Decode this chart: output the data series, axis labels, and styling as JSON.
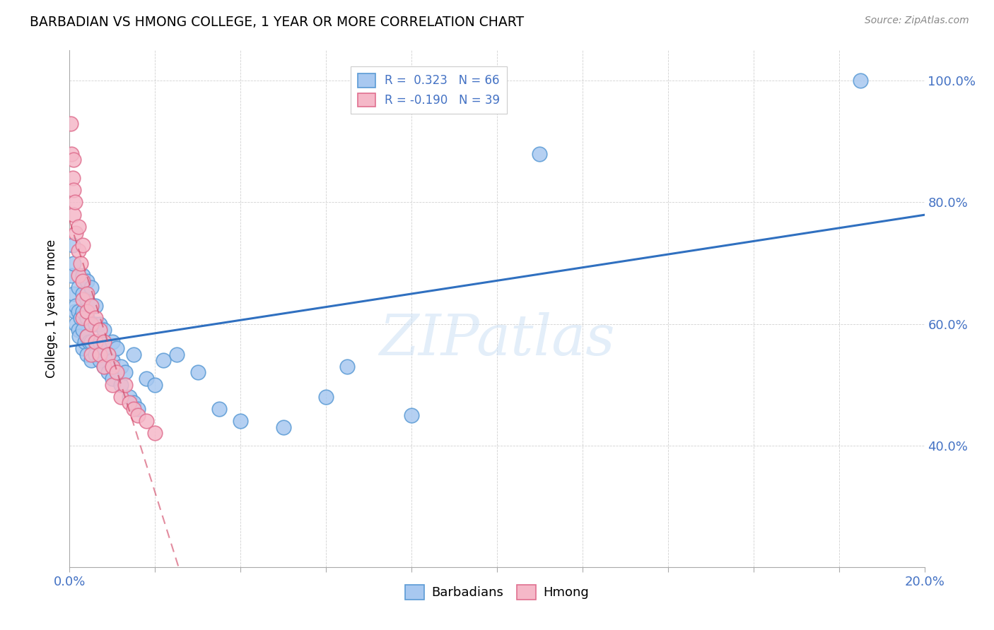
{
  "title": "BARBADIAN VS HMONG COLLEGE, 1 YEAR OR MORE CORRELATION CHART",
  "source_text": "Source: ZipAtlas.com",
  "ylabel": "College, 1 year or more",
  "xlim": [
    0.0,
    0.2
  ],
  "ylim": [
    0.2,
    1.05
  ],
  "barbadian_color": "#a8c8f0",
  "barbadian_edge_color": "#5b9bd5",
  "hmong_color": "#f5b8c8",
  "hmong_edge_color": "#e07090",
  "trend_blue": "#3070c0",
  "trend_pink": "#d04060",
  "legend_r_blue": "0.323",
  "legend_n_blue": "66",
  "legend_r_pink": "-0.190",
  "legend_n_pink": "39",
  "watermark": "ZIPatlas",
  "barbadian_x": [
    0.0005,
    0.0008,
    0.001,
    0.001,
    0.0012,
    0.0015,
    0.0015,
    0.002,
    0.002,
    0.002,
    0.0022,
    0.0025,
    0.003,
    0.003,
    0.003,
    0.003,
    0.003,
    0.0035,
    0.004,
    0.004,
    0.004,
    0.004,
    0.004,
    0.0045,
    0.005,
    0.005,
    0.005,
    0.005,
    0.005,
    0.006,
    0.006,
    0.006,
    0.006,
    0.007,
    0.007,
    0.007,
    0.007,
    0.008,
    0.008,
    0.008,
    0.009,
    0.009,
    0.01,
    0.01,
    0.01,
    0.011,
    0.012,
    0.012,
    0.013,
    0.014,
    0.015,
    0.015,
    0.016,
    0.018,
    0.02,
    0.022,
    0.025,
    0.03,
    0.035,
    0.04,
    0.05,
    0.06,
    0.065,
    0.08,
    0.11,
    0.185
  ],
  "barbadian_y": [
    0.68,
    0.73,
    0.65,
    0.7,
    0.62,
    0.6,
    0.63,
    0.59,
    0.62,
    0.66,
    0.58,
    0.61,
    0.56,
    0.59,
    0.62,
    0.65,
    0.68,
    0.57,
    0.55,
    0.58,
    0.61,
    0.64,
    0.67,
    0.57,
    0.54,
    0.57,
    0.6,
    0.63,
    0.66,
    0.55,
    0.57,
    0.6,
    0.63,
    0.54,
    0.57,
    0.6,
    0.55,
    0.53,
    0.56,
    0.59,
    0.52,
    0.55,
    0.51,
    0.54,
    0.57,
    0.56,
    0.5,
    0.53,
    0.52,
    0.48,
    0.47,
    0.55,
    0.46,
    0.51,
    0.5,
    0.54,
    0.55,
    0.52,
    0.46,
    0.44,
    0.43,
    0.48,
    0.53,
    0.45,
    0.88,
    1.0
  ],
  "hmong_x": [
    0.0003,
    0.0005,
    0.0008,
    0.001,
    0.001,
    0.001,
    0.0012,
    0.0015,
    0.002,
    0.002,
    0.002,
    0.0025,
    0.003,
    0.003,
    0.003,
    0.003,
    0.004,
    0.004,
    0.004,
    0.005,
    0.005,
    0.005,
    0.006,
    0.006,
    0.007,
    0.007,
    0.008,
    0.008,
    0.009,
    0.01,
    0.01,
    0.011,
    0.012,
    0.013,
    0.014,
    0.015,
    0.016,
    0.018,
    0.02
  ],
  "hmong_y": [
    0.93,
    0.88,
    0.84,
    0.82,
    0.78,
    0.87,
    0.8,
    0.75,
    0.76,
    0.72,
    0.68,
    0.7,
    0.67,
    0.64,
    0.61,
    0.73,
    0.65,
    0.62,
    0.58,
    0.63,
    0.6,
    0.55,
    0.61,
    0.57,
    0.59,
    0.55,
    0.57,
    0.53,
    0.55,
    0.53,
    0.5,
    0.52,
    0.48,
    0.5,
    0.47,
    0.46,
    0.45,
    0.44,
    0.42
  ]
}
